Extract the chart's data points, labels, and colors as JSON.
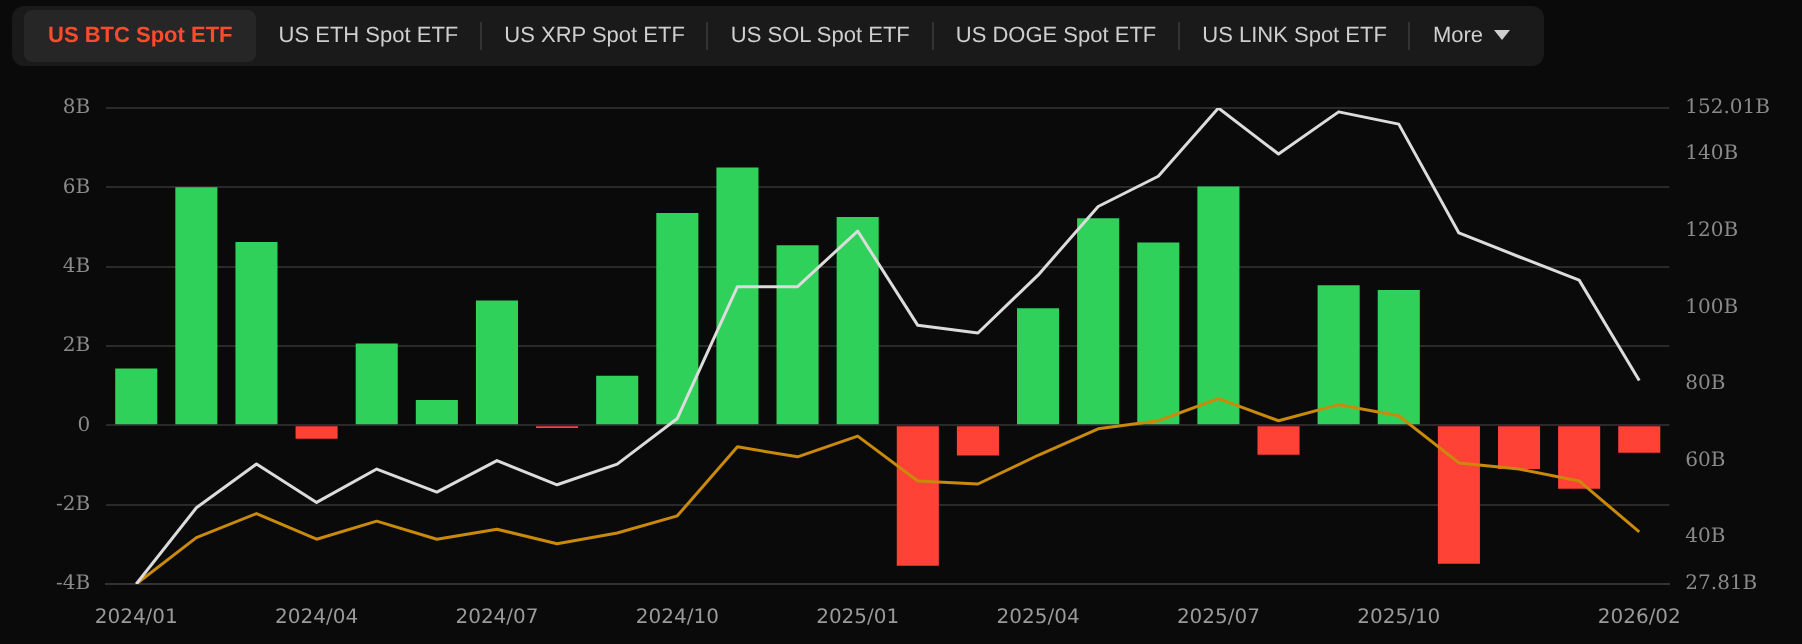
{
  "chart_data": {
    "type": "bar",
    "annotations": [
      "US BTC Spot ETF",
      "US ETH Spot ETF",
      "US XRP Spot ETF",
      "US SOL Spot ETF",
      "US DOGE Spot ETF",
      "US LINK Spot ETF",
      "More"
    ],
    "categories": [
      "2024/01",
      null,
      null,
      "2024/04",
      null,
      null,
      "2024/07",
      null,
      null,
      "2024/10",
      null,
      null,
      "2025/01",
      null,
      null,
      "2025/04",
      null,
      null,
      "2025/07",
      null,
      null,
      "2025/10",
      null,
      null,
      null,
      "2026/02"
    ],
    "series": [
      {
        "colors": [
          "#2fd15a",
          "#2fd15a",
          "#2fd15a",
          "#ff4136",
          "#2fd15a",
          "#2fd15a",
          "#2fd15a",
          "#ff4136",
          "#2fd15a",
          "#2fd15a",
          "#2fd15a",
          "#2fd15a",
          "#2fd15a",
          "#ff4136",
          "#ff4136",
          "#2fd15a",
          "#2fd15a",
          "#2fd15a",
          "#2fd15a",
          "#ff4136",
          "#2fd15a",
          "#2fd15a",
          "#ff4136",
          "#ff4136",
          "#ff4136",
          "#ff4136"
        ],
        "values": [
          1.43,
          6.0,
          4.62,
          -0.34,
          2.06,
          0.64,
          3.15,
          -0.07,
          1.25,
          5.35,
          6.5,
          4.54,
          5.25,
          -3.54,
          -0.76,
          2.95,
          5.22,
          4.61,
          6.02,
          -0.74,
          3.53,
          3.41,
          -3.49,
          -1.1,
          -1.6,
          -0.69
        ]
      },
      {
        "type": "line",
        "axis": "y2",
        "color": "#dcdcdc",
        "values": [
          27.81,
          47.7,
          59.1,
          49.1,
          57.8,
          51.8,
          60.0,
          53.7,
          59.1,
          71.0,
          105.4,
          105.4,
          119.9,
          95.3,
          93.3,
          108.4,
          126.3,
          134.2,
          152.0,
          140.0,
          151.0,
          147.8,
          119.4,
          113.2,
          107.1,
          80.9
        ]
      },
      {
        "type": "line",
        "axis": "y2",
        "color": "#c98a0b",
        "values": [
          27.81,
          39.9,
          46.2,
          39.5,
          44.2,
          39.5,
          42.1,
          38.3,
          41.1,
          45.6,
          63.6,
          61.0,
          66.4,
          54.7,
          53.9,
          61.4,
          68.3,
          70.4,
          76.2,
          70.4,
          74.6,
          71.7,
          59.4,
          57.8,
          54.7,
          41.4
        ]
      }
    ],
    "ylim": [
      -4,
      8
    ],
    "yticks": [
      {
        "value": -4,
        "label": "-4B"
      },
      {
        "value": -2,
        "label": "-2B"
      },
      0,
      {
        "value": 2,
        "label": "2B"
      },
      {
        "value": 4,
        "label": "4B"
      },
      {
        "value": 6,
        "label": "6B"
      },
      {
        "value": 8,
        "label": "8B"
      }
    ],
    "y2lim": [
      27.81,
      152.01
    ],
    "y2ticks": [
      {
        "value": 27.81,
        "label": "27.81B"
      },
      {
        "value": 40,
        "label": "40B"
      },
      {
        "value": 60,
        "label": "60B"
      },
      {
        "value": 80,
        "label": "80B"
      },
      {
        "value": 100,
        "label": "100B"
      },
      {
        "value": 120,
        "label": "120B"
      },
      {
        "value": 140,
        "label": "140B"
      },
      {
        "value": 152.01,
        "label": "152.01B"
      }
    ],
    "grid": "y",
    "marker": "none",
    "line_style": "solid"
  }
}
